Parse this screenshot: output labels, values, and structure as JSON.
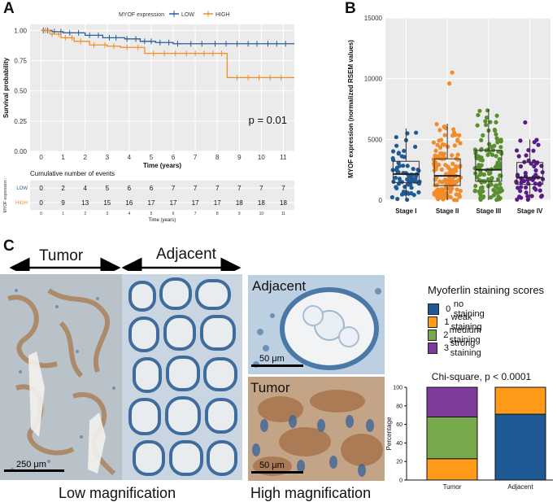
{
  "panel_letters": {
    "a": "A",
    "b": "B",
    "c": "C"
  },
  "colors": {
    "low": "#2b5d9b",
    "high": "#f28c28",
    "no": "#1f5a96",
    "weak": "#ff9b1a",
    "medium": "#77a84a",
    "strong": "#7d3c9b"
  },
  "chart_data": [
    {
      "id": "km",
      "type": "line",
      "title": "",
      "legend_title": "MYOF expression",
      "legend_position": "top",
      "xlabel": "Time (years)",
      "ylabel": "Survival probability",
      "xlim": [
        -0.5,
        11.5
      ],
      "ylim": [
        0,
        1.05
      ],
      "xticks": [
        "0",
        "1",
        "2",
        "3",
        "4",
        "5",
        "6",
        "7",
        "8",
        "9",
        "10",
        "11"
      ],
      "yticks": [
        "0.00",
        "0.25",
        "0.50",
        "0.75",
        "1.00"
      ],
      "p_value": "p = 0.01",
      "series": [
        {
          "name": "LOW",
          "color": "#2b5d9b",
          "steps": [
            [
              0,
              1.0
            ],
            [
              0.5,
              0.99
            ],
            [
              1.0,
              0.98
            ],
            [
              2.0,
              0.96
            ],
            [
              2.8,
              0.94
            ],
            [
              3.8,
              0.93
            ],
            [
              4.5,
              0.91
            ],
            [
              5.2,
              0.9
            ],
            [
              6.0,
              0.89
            ],
            [
              11.5,
              0.89
            ]
          ],
          "censors": [
            0.1,
            0.3,
            0.6,
            0.9,
            1.3,
            1.7,
            2.2,
            2.6,
            3.1,
            3.4,
            3.9,
            4.3,
            4.7,
            5.0,
            5.4,
            5.8,
            6.2,
            6.8,
            7.3,
            7.9,
            8.4,
            8.9,
            9.4,
            9.8,
            10.3,
            10.7,
            11.1
          ]
        },
        {
          "name": "HIGH",
          "color": "#f28c28",
          "steps": [
            [
              0,
              1.0
            ],
            [
              0.4,
              0.97
            ],
            [
              0.9,
              0.94
            ],
            [
              1.5,
              0.91
            ],
            [
              2.2,
              0.88
            ],
            [
              3.0,
              0.87
            ],
            [
              3.6,
              0.86
            ],
            [
              4.7,
              0.81
            ],
            [
              8.4,
              0.81
            ],
            [
              8.45,
              0.61
            ],
            [
              11.5,
              0.61
            ]
          ],
          "censors": [
            0.2,
            0.5,
            0.8,
            1.1,
            1.4,
            1.8,
            2.4,
            2.9,
            3.3,
            3.9,
            4.4,
            5.1,
            5.6,
            6.1,
            6.6,
            7.0,
            7.4,
            7.8,
            8.2,
            8.9,
            9.4,
            9.9,
            10.4,
            10.9
          ]
        }
      ]
    },
    {
      "id": "risk_table",
      "type": "table",
      "title": "Cumulative number of events",
      "ylabel": "MYOF expression",
      "xlabel": "Time (years)",
      "columns": [
        "0",
        "1",
        "2",
        "3",
        "4",
        "5",
        "6",
        "7",
        "8",
        "9",
        "10",
        "11"
      ],
      "rows": [
        {
          "name": "LOW",
          "color": "#2b5d9b",
          "values": [
            "0",
            "2",
            "4",
            "5",
            "6",
            "6",
            "7",
            "7",
            "7",
            "7",
            "7",
            "7"
          ]
        },
        {
          "name": "HIGH",
          "color": "#f28c28",
          "values": [
            "0",
            "9",
            "13",
            "15",
            "16",
            "17",
            "17",
            "17",
            "17",
            "18",
            "18",
            "18"
          ]
        }
      ]
    },
    {
      "id": "boxplot",
      "type": "scatter",
      "title": "",
      "ylabel": "MYOF expression (normalized RSEM values)",
      "xlabel": "",
      "categories": [
        "Stage I",
        "Stage II",
        "Stage III",
        "Stage IV"
      ],
      "ylim": [
        0,
        15000
      ],
      "yticks": [
        "0",
        "5000",
        "10000",
        "15000"
      ],
      "series": [
        {
          "name": "Stage I",
          "color": "#1f5a96",
          "q1": 1450,
          "median": 2150,
          "q3": 3200,
          "whisker_low": 0,
          "whisker_high": 5900,
          "n": 70
        },
        {
          "name": "Stage II",
          "color": "#f28c28",
          "q1": 1200,
          "median": 2000,
          "q3": 3400,
          "whisker_low": 0,
          "whisker_high": 6300,
          "n": 150,
          "outliers": [
            9600,
            10500
          ]
        },
        {
          "name": "Stage III",
          "color": "#5a8f2e",
          "q1": 1550,
          "median": 2500,
          "q3": 4100,
          "whisker_low": 0,
          "whisker_high": 7500,
          "n": 120
        },
        {
          "name": "Stage IV",
          "color": "#5b1a8a",
          "q1": 1300,
          "median": 1850,
          "q3": 3100,
          "whisker_low": 0,
          "whisker_high": 5000,
          "n": 60,
          "outliers": [
            6400
          ]
        }
      ]
    },
    {
      "id": "stacked_bar",
      "type": "bar",
      "title": "Chi-square, p < 0.0001",
      "xlabel": "",
      "ylabel": "Percentage",
      "categories": [
        "Tumor",
        "Adjacent"
      ],
      "ylim": [
        0,
        100
      ],
      "yticks": [
        "0",
        "20",
        "40",
        "60",
        "80",
        "100"
      ],
      "series": [
        {
          "name": "no staining",
          "color": "#1f5a96",
          "values": [
            0,
            71
          ]
        },
        {
          "name": "weak staining",
          "color": "#ff9b1a",
          "values": [
            23,
            29
          ]
        },
        {
          "name": "medium staining",
          "color": "#77a84a",
          "values": [
            45,
            0
          ]
        },
        {
          "name": "strong staining",
          "color": "#7d3c9b",
          "values": [
            32,
            0
          ]
        }
      ]
    }
  ],
  "panel_c": {
    "tumor_label": "Tumor",
    "adjacent_label": "Adjacent",
    "low_mag_scale": "250 μm",
    "high_adj_label": "Adjacent",
    "high_adj_scale": "50 μm",
    "high_tumor_label": "Tumor",
    "high_tumor_scale": "50 μm",
    "low_mag_caption": "Low magnification",
    "high_mag_caption": "High magnification"
  },
  "legend": {
    "title": "Myoferlin staining scores",
    "items": [
      {
        "num": "0",
        "label": "no staining",
        "color": "#1f5a96"
      },
      {
        "num": "1",
        "label": "weak staining",
        "color": "#ff9b1a"
      },
      {
        "num": "2",
        "label": "medium staining",
        "color": "#77a84a"
      },
      {
        "num": "3",
        "label": "strong staining",
        "color": "#7d3c9b"
      }
    ]
  }
}
